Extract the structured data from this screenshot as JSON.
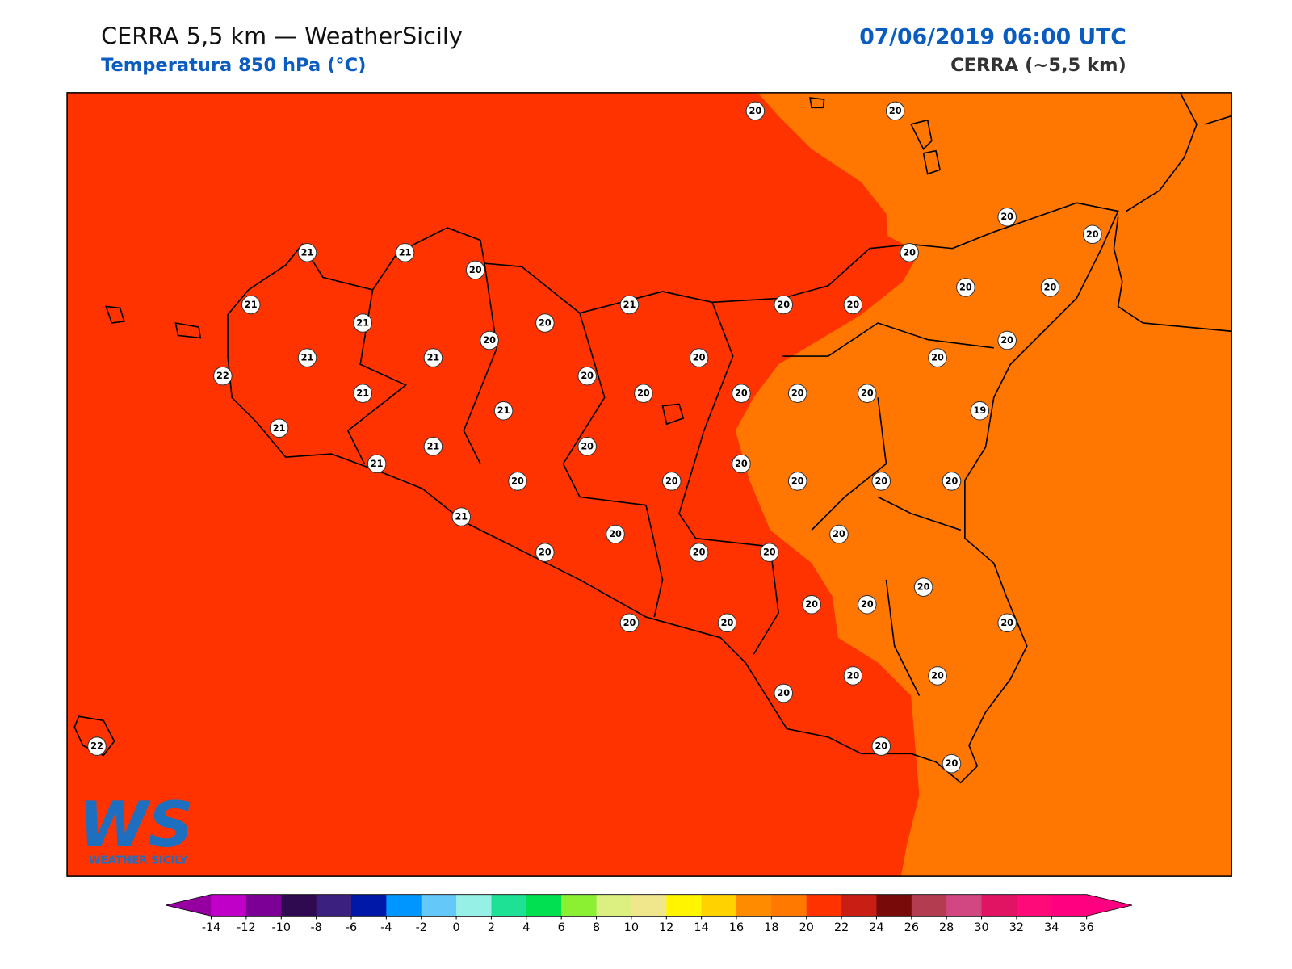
{
  "header": {
    "title": "CERRA 5,5 km — WeatherSicily",
    "subtitle": "Temperatura 850 hPa (°C)",
    "datetime": "07/06/2019 06:00 UTC",
    "model": "CERRA (~5,5 km)"
  },
  "map": {
    "colors": {
      "warm": "#ff3300",
      "mild": "#ff7700"
    }
  },
  "stations": [
    20,
    20,
    20,
    20,
    20,
    21,
    21,
    20,
    20,
    20,
    21,
    21,
    20,
    20,
    21,
    20,
    20,
    20,
    21,
    21,
    20,
    20,
    22,
    20,
    21,
    20,
    20,
    20,
    20,
    21,
    19,
    21,
    21,
    20,
    21,
    20,
    20,
    20,
    20,
    20,
    20,
    21,
    20,
    20,
    20,
    20,
    20,
    20,
    20,
    20,
    20,
    20,
    20,
    20,
    20,
    20,
    20,
    20,
    22
  ],
  "colorbar": {
    "ticks": [
      -14,
      -12,
      -10,
      -8,
      -6,
      -4,
      -2,
      0,
      2,
      4,
      6,
      8,
      10,
      12,
      14,
      16,
      18,
      20,
      22,
      24,
      26,
      28,
      30,
      32,
      34,
      36
    ],
    "colors": [
      "#c000c8",
      "#7d0096",
      "#300a50",
      "#3c2080",
      "#0018a8",
      "#0096ff",
      "#64c8f8",
      "#96f0e6",
      "#1ee196",
      "#00e050",
      "#8cf032",
      "#dcf082",
      "#f0e68c",
      "#fff500",
      "#ffd200",
      "#ff8c00",
      "#ff7800",
      "#ff3200",
      "#c81e14",
      "#780a0a",
      "#b43c50",
      "#d24682",
      "#e11464",
      "#ff0a78",
      "#ff0080"
    ],
    "under": "#9600a0",
    "over": "#ff0080"
  },
  "logo": {
    "mark": "WS",
    "text": "WEATHER SICILY"
  }
}
